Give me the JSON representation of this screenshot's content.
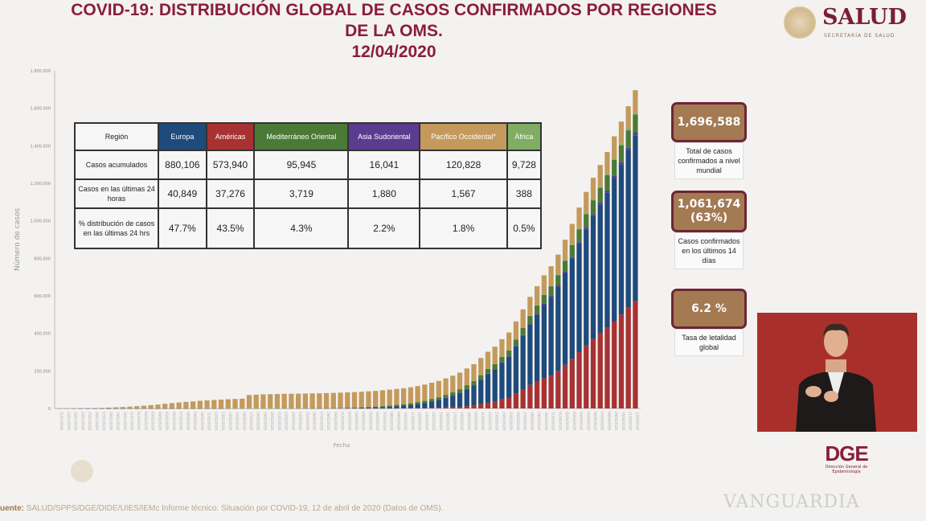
{
  "header": {
    "title_line1": "COVID-19: DISTRIBUCIÓN GLOBAL DE CASOS CONFIRMADOS POR REGIONES",
    "title_line2": "DE LA OMS.",
    "title_line3": "12/04/2020"
  },
  "logo": {
    "name": "SALUD",
    "subtitle": "SECRETARÍA DE SALUD"
  },
  "table": {
    "header_label": "Región",
    "regions": [
      {
        "name": "Europa",
        "color": "#1f4a7c"
      },
      {
        "name": "Américas",
        "color": "#a83232"
      },
      {
        "name": "Mediterráneo Oriental",
        "color": "#4b7a37"
      },
      {
        "name": "Asia Sudoriental",
        "color": "#5c3c8e"
      },
      {
        "name": "Pacífico Occidental*",
        "color": "#c49a5c"
      },
      {
        "name": "África",
        "color": "#80ad62"
      }
    ],
    "rows": [
      {
        "label": "Casos acumulados",
        "values": [
          "880,106",
          "573,940",
          "95,945",
          "16,041",
          "120,828",
          "9,728"
        ]
      },
      {
        "label": "Casos en las últimas 24 horas",
        "values": [
          "40,849",
          "37,276",
          "3,719",
          "1,880",
          "1,567",
          "388"
        ]
      },
      {
        "label": "% distribución de casos en las últimas 24 hrs",
        "values": [
          "47.7%",
          "43.5%",
          "4.3%",
          "2.2%",
          "1.8%",
          "0.5%"
        ]
      }
    ]
  },
  "kpis": [
    {
      "value": "1,696,588",
      "label": "Total de casos confirmados a nivel mundial"
    },
    {
      "value": "1,061,674",
      "value2": "(63%)",
      "label": "Casos confirmados en los últimos 14 días"
    },
    {
      "value": "6.2 %",
      "label": "Tasa de letalidad global"
    }
  ],
  "dge": {
    "logo": "DGE",
    "subtitle": "Dirección General de Epidemiología"
  },
  "watermark": "VANGUARDIA",
  "footer": {
    "prefix": "uente:",
    "text": "SALUD/SPPS/DGE/DIDE/UIES/IEMc Informe técnico: Situación por COVID-19, 12 de abril de 2020 (Datos de OMS)."
  },
  "chart_data": {
    "type": "bar",
    "stacked": true,
    "xlabel": "Fecha",
    "ylabel": "Número de casos",
    "ylim": [
      0,
      1800000
    ],
    "yticks": [
      "0",
      "200,000",
      "400,000",
      "600,000",
      "800,000",
      "1,000,000",
      "1,200,000",
      "1,400,000",
      "1,600,000",
      "1,800,000"
    ],
    "x_start": "21/01/2020",
    "x_end": "12/04/2020",
    "series": [
      {
        "name": "Américas",
        "color": "#a83232",
        "values": [
          1,
          1,
          1,
          2,
          2,
          5,
          5,
          5,
          5,
          5,
          6,
          7,
          8,
          11,
          11,
          12,
          12,
          12,
          12,
          12,
          13,
          13,
          14,
          15,
          15,
          15,
          15,
          15,
          15,
          15,
          15,
          15,
          35,
          35,
          35,
          53,
          53,
          60,
          64,
          70,
          80,
          100,
          130,
          180,
          250,
          320,
          420,
          500,
          650,
          800,
          1100,
          1700,
          2000,
          3000,
          3400,
          4900,
          6000,
          8300,
          12400,
          15300,
          23100,
          32000,
          37000,
          48000,
          56000,
          80000,
          103000,
          125000,
          142000,
          161000,
          175000,
          200000,
          232000,
          265000,
          300000,
          335000,
          370000,
          400000,
          430000,
          465000,
          500000,
          536664,
          573940
        ]
      },
      {
        "name": "Europa",
        "color": "#1f4a7c",
        "values": [
          0,
          0,
          0,
          3,
          3,
          3,
          4,
          4,
          6,
          8,
          10,
          13,
          16,
          23,
          26,
          28,
          30,
          33,
          38,
          41,
          43,
          45,
          46,
          46,
          46,
          46,
          46,
          46,
          47,
          47,
          47,
          47,
          51,
          80,
          150,
          230,
          320,
          470,
          700,
          1100,
          1700,
          2200,
          2700,
          3300,
          4200,
          5300,
          6800,
          8700,
          11000,
          13500,
          17000,
          21500,
          27000,
          34000,
          41000,
          51000,
          62000,
          74000,
          90000,
          108000,
          130000,
          152000,
          171000,
          196000,
          220000,
          250000,
          285000,
          324000,
          358000,
          392000,
          420000,
          450000,
          490000,
          535000,
          580000,
          620000,
          655000,
          687000,
          720000,
          763000,
          800000,
          839257,
          880106
        ]
      },
      {
        "name": "Asia Sudoriental",
        "color": "#5c3c8e",
        "values": [
          2,
          2,
          4,
          4,
          5,
          5,
          8,
          14,
          14,
          14,
          19,
          19,
          19,
          21,
          25,
          25,
          25,
          25,
          25,
          25,
          25,
          25,
          25,
          25,
          25,
          25,
          25,
          25,
          25,
          25,
          25,
          25,
          25,
          25,
          25,
          25,
          25,
          25,
          25,
          25,
          30,
          35,
          50,
          85,
          95,
          100,
          110,
          120,
          130,
          150,
          180,
          230,
          280,
          340,
          400,
          450,
          510,
          600,
          700,
          900,
          1100,
          1300,
          1600,
          1900,
          2300,
          2700,
          3200,
          3600,
          4000,
          4500,
          5000,
          5800,
          6400,
          7000,
          7800,
          8700,
          9500,
          10400,
          11300,
          12200,
          13100,
          14161,
          16041
        ]
      },
      {
        "name": "Mediterráneo Oriental",
        "color": "#4b7a37",
        "values": [
          0,
          0,
          0,
          0,
          0,
          0,
          0,
          0,
          4,
          4,
          4,
          4,
          5,
          5,
          5,
          5,
          5,
          7,
          7,
          7,
          7,
          7,
          7,
          8,
          8,
          8,
          9,
          9,
          9,
          11,
          14,
          30,
          60,
          90,
          150,
          200,
          320,
          450,
          600,
          800,
          1000,
          1500,
          2000,
          2700,
          3800,
          4700,
          5700,
          6900,
          7900,
          8500,
          9500,
          10500,
          12000,
          13500,
          15000,
          16500,
          18000,
          19500,
          20800,
          22000,
          23500,
          25000,
          26800,
          28800,
          31000,
          34000,
          37500,
          41000,
          44500,
          47500,
          51000,
          55000,
          59000,
          63000,
          67000,
          72000,
          75000,
          78500,
          82000,
          85000,
          88500,
          92226,
          95945
        ]
      },
      {
        "name": "África",
        "color": "#80ad62",
        "values": [
          0,
          0,
          0,
          0,
          0,
          0,
          0,
          0,
          0,
          0,
          0,
          0,
          0,
          0,
          0,
          0,
          0,
          0,
          0,
          0,
          0,
          0,
          0,
          0,
          1,
          1,
          1,
          1,
          1,
          1,
          1,
          1,
          1,
          1,
          1,
          1,
          1,
          2,
          2,
          3,
          3,
          4,
          5,
          5,
          6,
          8,
          10,
          15,
          20,
          35,
          60,
          100,
          130,
          170,
          200,
          250,
          300,
          400,
          500,
          600,
          800,
          1000,
          1200,
          1400,
          1500,
          1900,
          2300,
          2700,
          3100,
          3400,
          3800,
          4200,
          4700,
          5200,
          5800,
          6500,
          6800,
          7200,
          7600,
          8000,
          8700,
          9340,
          9728
        ]
      },
      {
        "name": "Pacífico Occidental",
        "color": "#c49a5c",
        "values": [
          282,
          314,
          581,
          846,
          1320,
          2014,
          2798,
          4593,
          6065,
          7818,
          9826,
          11953,
          14557,
          17391,
          20630,
          24554,
          28276,
          31481,
          34886,
          37558,
          40554,
          43103,
          45171,
          46997,
          49053,
          50580,
          51857,
          71429,
          73332,
          75204,
          75748,
          76769,
          77794,
          78166,
          78600,
          78970,
          79450,
          79950,
          80400,
          80800,
          81200,
          81600,
          82000,
          82400,
          82800,
          83200,
          83600,
          84000,
          84300,
          84600,
          85000,
          85400,
          85800,
          86300,
          86700,
          87100,
          87600,
          88100,
          88700,
          89400,
          90200,
          91000,
          92000,
          93000,
          94200,
          95500,
          97000,
          98500,
          100000,
          101600,
          103300,
          105000,
          106800,
          108600,
          110300,
          111800,
          113200,
          114700,
          116100,
          117600,
          118500,
          119261,
          120828
        ]
      }
    ]
  }
}
